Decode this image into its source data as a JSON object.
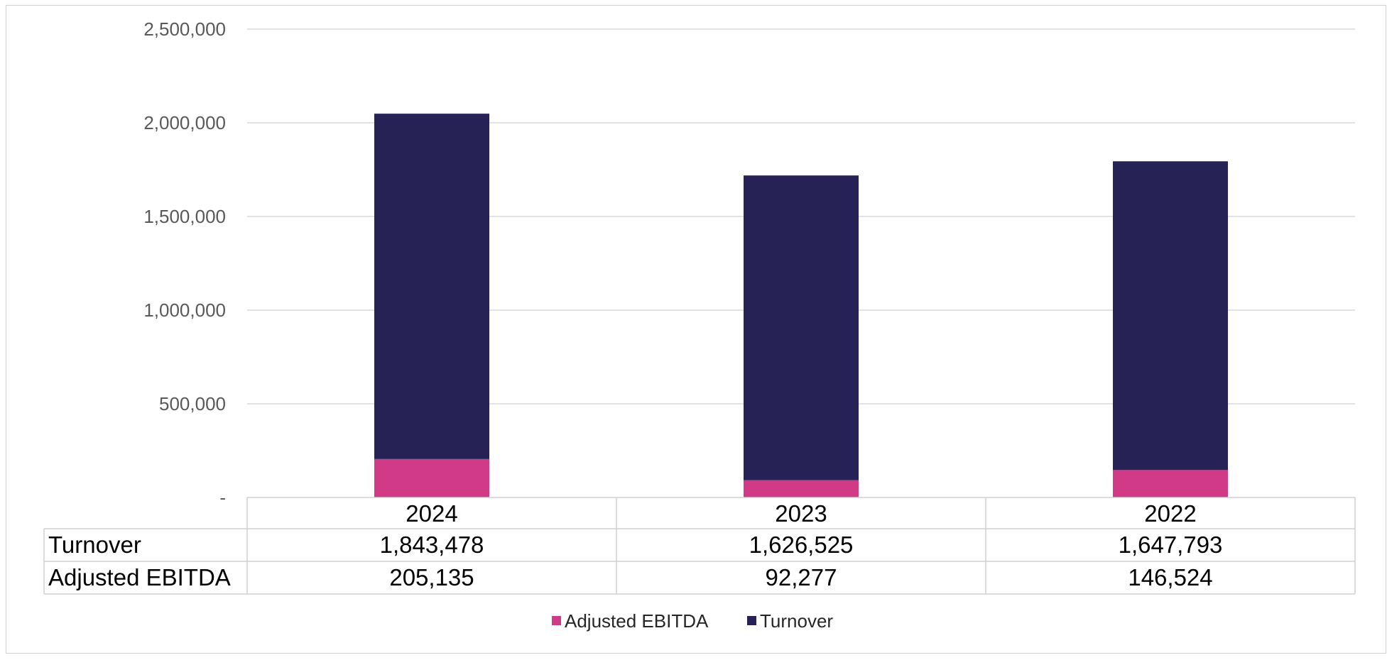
{
  "chart_data": {
    "type": "bar",
    "stacked": true,
    "categories": [
      "2024",
      "2023",
      "2022"
    ],
    "series": [
      {
        "name": "Adjusted EBITDA",
        "values": [
          205135,
          92277,
          146524
        ],
        "color": "#D13A87"
      },
      {
        "name": "Turnover",
        "values": [
          1843478,
          1626525,
          1647793
        ],
        "color": "#262256"
      }
    ],
    "ylim": [
      0,
      2500000
    ],
    "yticks": [
      0,
      500000,
      1000000,
      1500000,
      2000000,
      2500000
    ],
    "ytick_labels": [
      "-",
      "500,000",
      "1,000,000",
      "1,500,000",
      "2,000,000",
      "2,500,000"
    ],
    "grid": true,
    "legend": "bottom",
    "data_table": {
      "rows": [
        {
          "label": "Turnover",
          "cells": [
            "1,843,478",
            "1,626,525",
            "1,647,793"
          ]
        },
        {
          "label": "Adjusted EBITDA",
          "cells": [
            "205,135",
            "92,277",
            "146,524"
          ]
        }
      ]
    }
  }
}
